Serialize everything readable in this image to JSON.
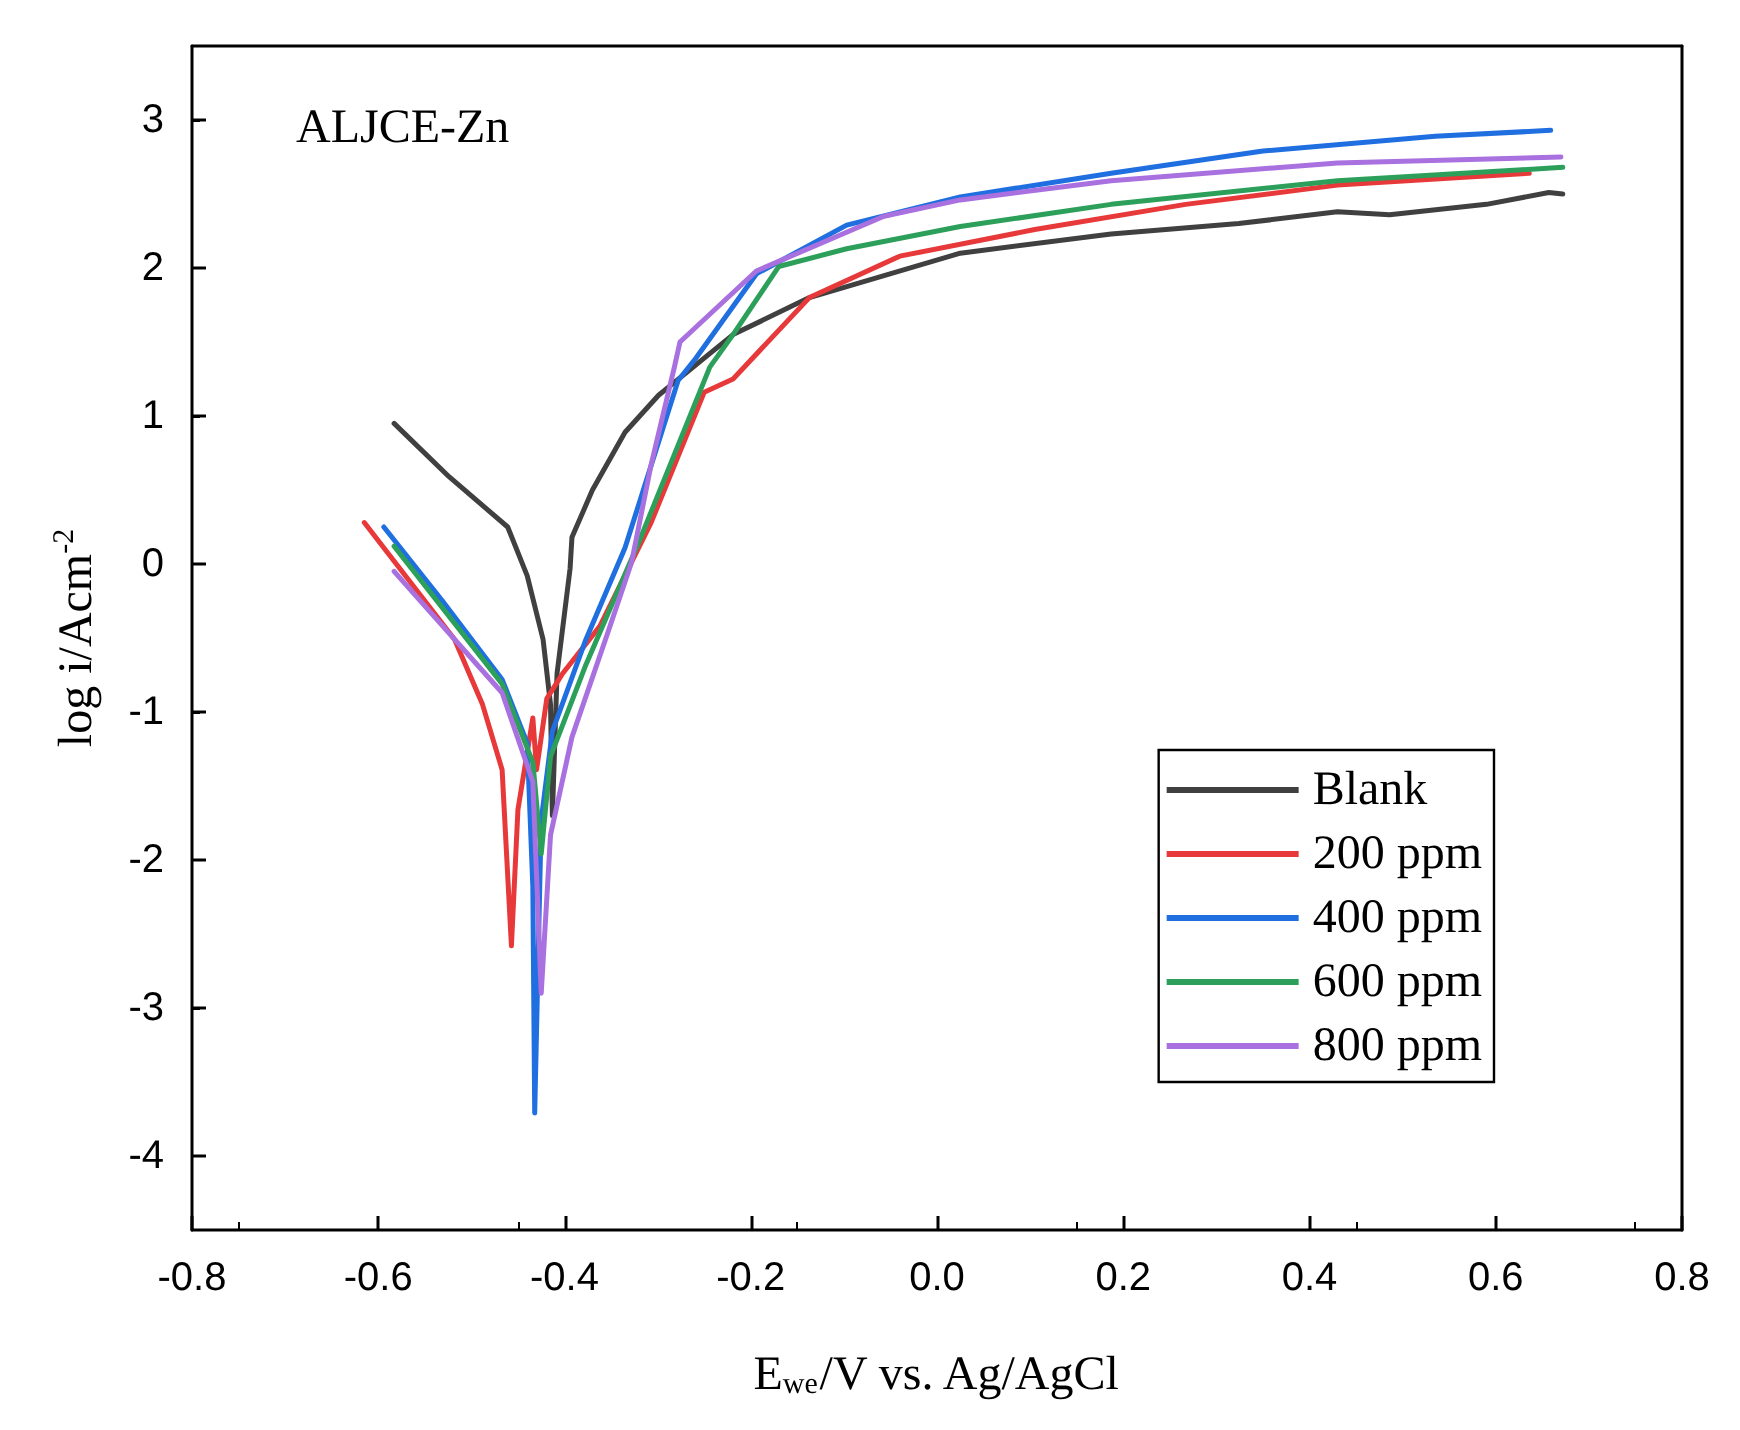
{
  "chart_data": {
    "type": "line",
    "xlabel": "E$_{we}$/V vs. Ag/AgCl",
    "ylabel": "log i/Acm$^{-2}$",
    "annotations": [
      "ALJCE-Zn"
    ],
    "xlim": [
      -0.8,
      0.8
    ],
    "ylim": [
      -4.5,
      3.5
    ],
    "xticks": [
      -0.8,
      -0.6,
      -0.4,
      -0.2,
      {
        "value": 0,
        "label": "0.0"
      },
      0.2,
      0.4,
      0.6,
      0.8
    ],
    "yticks": [
      -4,
      -3,
      -2,
      -1,
      0,
      1,
      2,
      3
    ],
    "grid": false,
    "legend": "bottom right",
    "marker": "none",
    "line_style": "solid",
    "series": [
      {
        "name": "Blank",
        "color": "#404040",
        "x": [
          -0.583,
          -0.524,
          -0.461,
          -0.44,
          -0.423,
          -0.415,
          -0.413,
          -0.408,
          -0.394,
          -0.392,
          -0.37,
          -0.335,
          -0.299,
          -0.219,
          -0.137,
          0.025,
          0.187,
          0.324,
          0.43,
          0.486,
          0.59,
          0.657,
          0.672
        ],
        "values": [
          0.95,
          0.59,
          0.25,
          -0.08,
          -0.51,
          -0.95,
          -1.7,
          -0.74,
          -0.03,
          0.18,
          0.5,
          0.89,
          1.14,
          1.55,
          1.8,
          2.1,
          2.23,
          2.3,
          2.38,
          2.36,
          2.43,
          2.51,
          2.5
        ]
      },
      {
        "name": "200 ppm",
        "color": "#e8393a",
        "x": [
          -0.615,
          -0.518,
          -0.488,
          -0.467,
          -0.457,
          -0.45,
          -0.434,
          -0.43,
          -0.419,
          -0.402,
          -0.362,
          -0.307,
          -0.25,
          -0.219,
          -0.137,
          -0.04,
          0.105,
          0.267,
          0.43,
          0.636
        ],
        "values": [
          0.28,
          -0.51,
          -0.95,
          -1.39,
          -2.58,
          -1.66,
          -1.04,
          -1.39,
          -0.91,
          -0.74,
          -0.42,
          0.28,
          1.16,
          1.25,
          1.8,
          2.08,
          2.26,
          2.43,
          2.56,
          2.64
        ]
      },
      {
        "name": "400 ppm",
        "color": "#1f6fe0",
        "x": [
          -0.594,
          -0.531,
          -0.467,
          -0.44,
          -0.434,
          -0.432,
          -0.425,
          -0.413,
          -0.377,
          -0.335,
          -0.278,
          -0.259,
          -0.194,
          -0.097,
          0.025,
          0.187,
          0.35,
          0.535,
          0.659
        ],
        "values": [
          0.25,
          -0.25,
          -0.78,
          -1.21,
          -2.18,
          -3.71,
          -1.73,
          -1.13,
          -0.51,
          0.11,
          1.24,
          1.39,
          1.96,
          2.29,
          2.48,
          2.64,
          2.79,
          2.89,
          2.93
        ]
      },
      {
        "name": "600 ppm",
        "color": "#2ca05a",
        "x": [
          -0.583,
          -0.467,
          -0.434,
          -0.425,
          -0.415,
          -0.377,
          -0.32,
          -0.244,
          -0.219,
          -0.17,
          -0.097,
          0.025,
          0.187,
          0.43,
          0.672
        ],
        "values": [
          0.12,
          -0.81,
          -1.34,
          -1.96,
          -1.3,
          -0.68,
          0.15,
          1.33,
          1.55,
          2.01,
          2.13,
          2.28,
          2.43,
          2.59,
          2.68
        ]
      },
      {
        "name": "800 ppm",
        "color": "#a970e0",
        "x": [
          -0.583,
          -0.467,
          -0.434,
          -0.425,
          -0.415,
          -0.392,
          -0.356,
          -0.328,
          -0.307,
          -0.282,
          -0.276,
          -0.194,
          -0.057,
          0.025,
          0.187,
          0.43,
          0.67
        ],
        "values": [
          -0.05,
          -0.87,
          -1.47,
          -2.9,
          -1.83,
          -1.17,
          -0.51,
          0.01,
          0.67,
          1.33,
          1.5,
          1.98,
          2.35,
          2.46,
          2.59,
          2.71,
          2.75
        ]
      }
    ]
  }
}
